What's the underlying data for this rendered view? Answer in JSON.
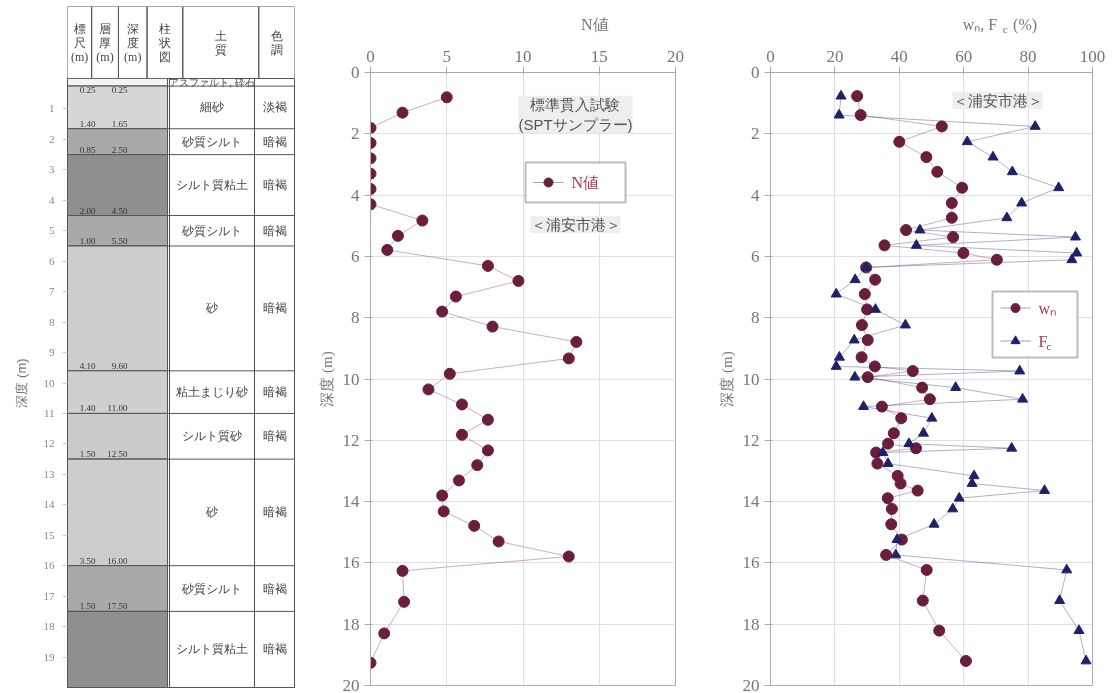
{
  "chart_data": [
    {
      "type": "bar",
      "stacked": true,
      "categories": [
        null
      ],
      "ylabel": "深度 (m)",
      "ylim": [
        20,
        0
      ],
      "yticks": [
        1,
        2,
        3,
        4,
        5,
        6,
        7,
        8,
        9,
        10,
        11,
        12,
        13,
        14,
        15,
        16,
        17,
        18,
        19
      ],
      "annotations": [
        "標尺(m)",
        "層厚(m)",
        "深度(m)",
        "柱状図",
        "土質",
        "色調",
        {
          "text": "0.25",
          "y": 0.25
        },
        {
          "text": "1.65",
          "y": 1.65
        },
        {
          "text": "2.50",
          "y": 2.5
        },
        {
          "text": "4.50",
          "y": 4.5
        },
        {
          "text": "5.50",
          "y": 5.5
        },
        {
          "text": "9.60",
          "y": 9.6
        },
        {
          "text": "11.00",
          "y": 11.0
        },
        {
          "text": "12.50",
          "y": 12.5
        },
        {
          "text": "16.00",
          "y": 16.0
        },
        {
          "text": "17.50",
          "y": 17.5
        }
      ],
      "y2_categories": [
        null,
        "淡褐",
        "暗褐",
        "暗褐",
        "暗褐",
        "暗褐",
        "暗褐",
        "暗褐",
        "暗褐",
        "暗褐",
        "暗褐"
      ],
      "series": [
        {
          "name": "アスファルト, 砕石",
          "color": "#f4f4f4",
          "values": [
            0.25
          ],
          "value_labels": [
            "0.25"
          ]
        },
        {
          "name": "細砂",
          "color": "#d6d6d6",
          "values": [
            1.4
          ],
          "value_labels": [
            "1.40"
          ]
        },
        {
          "name": "砂質シルト",
          "color": "#a9a9a9",
          "values": [
            0.85
          ],
          "value_labels": [
            "0.85"
          ]
        },
        {
          "name": "シルト質粘土",
          "color": "#8f8f8f",
          "values": [
            2.0
          ],
          "value_labels": [
            "2.00"
          ]
        },
        {
          "name": "砂質シルト",
          "color": "#a9a9a9",
          "values": [
            1.0
          ],
          "value_labels": [
            "1.00"
          ]
        },
        {
          "name": "砂",
          "color": "#cdcdcd",
          "values": [
            4.1
          ],
          "value_labels": [
            "4.10"
          ]
        },
        {
          "name": "粘土まじり砂",
          "color": "#cfcfcf",
          "values": [
            1.4
          ],
          "value_labels": [
            "1.40"
          ]
        },
        {
          "name": "シルト質砂",
          "color": "#cbcbcb",
          "values": [
            1.5
          ],
          "value_labels": [
            "1.50"
          ]
        },
        {
          "name": "砂",
          "color": "#cdcdcd",
          "values": [
            3.5
          ],
          "value_labels": [
            "3.50"
          ]
        },
        {
          "name": "砂質シルト",
          "color": "#a9a9a9",
          "values": [
            1.5
          ],
          "value_labels": [
            "1.50"
          ]
        },
        {
          "name": "シルト質粘土",
          "color": "#8f8f8f",
          "values": [
            2.5
          ],
          "value_labels": [
            null
          ]
        }
      ]
    },
    {
      "type": "line",
      "xlabel": "N値",
      "ylabel": "深度 (m)",
      "xlim": [
        0,
        20
      ],
      "xticks": [
        0,
        5,
        10,
        15,
        20
      ],
      "ylim": [
        20,
        0
      ],
      "yticks": [
        0,
        2,
        4,
        6,
        8,
        10,
        12,
        14,
        16,
        18,
        20
      ],
      "grid": true,
      "legend": "top right",
      "marker": "circle",
      "annotations": [
        "標準貫入試験\n(SPTサンプラー)",
        "＜浦安市港＞"
      ],
      "series": [
        {
          "name": "N値",
          "color": "#6a1e3c",
          "x": [
            5.0,
            2.1,
            0,
            0,
            0,
            0,
            0,
            0,
            3.4,
            1.8,
            1.1,
            7.7,
            9.7,
            5.6,
            4.7,
            8.0,
            13.5,
            13.0,
            5.2,
            3.8,
            6.0,
            7.7,
            6.0,
            7.7,
            7.0,
            5.8,
            4.7,
            4.8,
            6.8,
            8.4,
            13.0,
            2.1,
            2.2,
            0.9,
            0
          ],
          "values": [
            0.81,
            1.31,
            1.81,
            2.3,
            2.8,
            3.3,
            3.8,
            4.3,
            4.83,
            5.33,
            5.79,
            6.31,
            6.8,
            7.31,
            7.8,
            8.29,
            8.79,
            9.33,
            9.83,
            10.34,
            10.83,
            11.33,
            11.82,
            12.33,
            12.81,
            13.31,
            13.8,
            14.32,
            14.79,
            15.3,
            15.79,
            16.26,
            17.27,
            18.3,
            19.26
          ]
        }
      ]
    },
    {
      "type": "line",
      "xlabel": "wₙ, F$_{c}$ (%)",
      "ylabel": "深度 (m)",
      "xlim": [
        0,
        100
      ],
      "xticks": [
        0,
        20,
        40,
        60,
        80,
        100
      ],
      "ylim": [
        20,
        0
      ],
      "yticks": [
        0,
        2,
        4,
        6,
        8,
        10,
        12,
        14,
        16,
        18,
        20
      ],
      "grid": true,
      "legend": "right",
      "annotations": [
        "＜浦安市港＞"
      ],
      "series": [
        {
          "name": "wₙ",
          "color": "#6a1e3c",
          "marker": "circle",
          "x": [
            26.9,
            28.0,
            53.2,
            40.0,
            48.4,
            51.8,
            59.5,
            56.3,
            56.3,
            42.1,
            56.7,
            35.4,
            59.9,
            70.3,
            29.7,
            32.5,
            29.3,
            30.0,
            28.4,
            30.2,
            28.3,
            32.4,
            44.2,
            30.2,
            47.1,
            49.5,
            34.6,
            40.6,
            38.3,
            36.5,
            45.2,
            32.8,
            33.2,
            39.5,
            40.4,
            45.7,
            36.4,
            37.7,
            37.5,
            40.8,
            35.9,
            48.5,
            47.3,
            52.4,
            60.7
          ],
          "values": [
            0.77,
            1.39,
            1.76,
            2.26,
            2.76,
            3.24,
            3.76,
            4.26,
            4.74,
            5.14,
            5.37,
            5.64,
            5.89,
            6.11,
            6.36,
            6.76,
            7.23,
            7.73,
            8.24,
            8.73,
            9.29,
            9.59,
            9.74,
            9.94,
            10.28,
            10.66,
            10.9,
            11.28,
            11.77,
            12.11,
            12.26,
            12.4,
            12.76,
            13.16,
            13.41,
            13.64,
            13.89,
            14.24,
            14.74,
            15.24,
            15.74,
            16.23,
            17.23,
            18.21,
            19.2
          ]
        },
        {
          "name": "F$_{c}$",
          "color": "#1f2166",
          "marker": "triangle",
          "x": [
            21.9,
            21.3,
            82.2,
            61.1,
            69.1,
            75.1,
            89.5,
            78.0,
            73.4,
            46.4,
            94.7,
            45.3,
            95.1,
            93.6,
            29.7,
            26.3,
            20.4,
            32.6,
            41.9,
            26.0,
            21.4,
            20.4,
            77.4,
            26.2,
            57.5,
            78.3,
            28.9,
            50.1,
            47.5,
            43.0,
            74.9,
            34.9,
            36.5,
            63.2,
            62.6,
            85.1,
            58.6,
            56.6,
            50.8,
            39.3,
            38.9,
            92.0,
            89.8,
            95.8,
            98.0
          ],
          "values": [
            0.77,
            1.39,
            1.76,
            2.26,
            2.76,
            3.24,
            3.76,
            4.26,
            4.74,
            5.14,
            5.37,
            5.64,
            5.89,
            6.11,
            6.36,
            6.76,
            7.23,
            7.73,
            8.24,
            8.73,
            9.29,
            9.59,
            9.74,
            9.94,
            10.28,
            10.66,
            10.9,
            11.28,
            11.77,
            12.11,
            12.26,
            12.4,
            12.76,
            13.16,
            13.41,
            13.64,
            13.89,
            14.24,
            14.74,
            15.24,
            15.74,
            16.23,
            17.23,
            18.21,
            19.2
          ]
        }
      ]
    }
  ]
}
